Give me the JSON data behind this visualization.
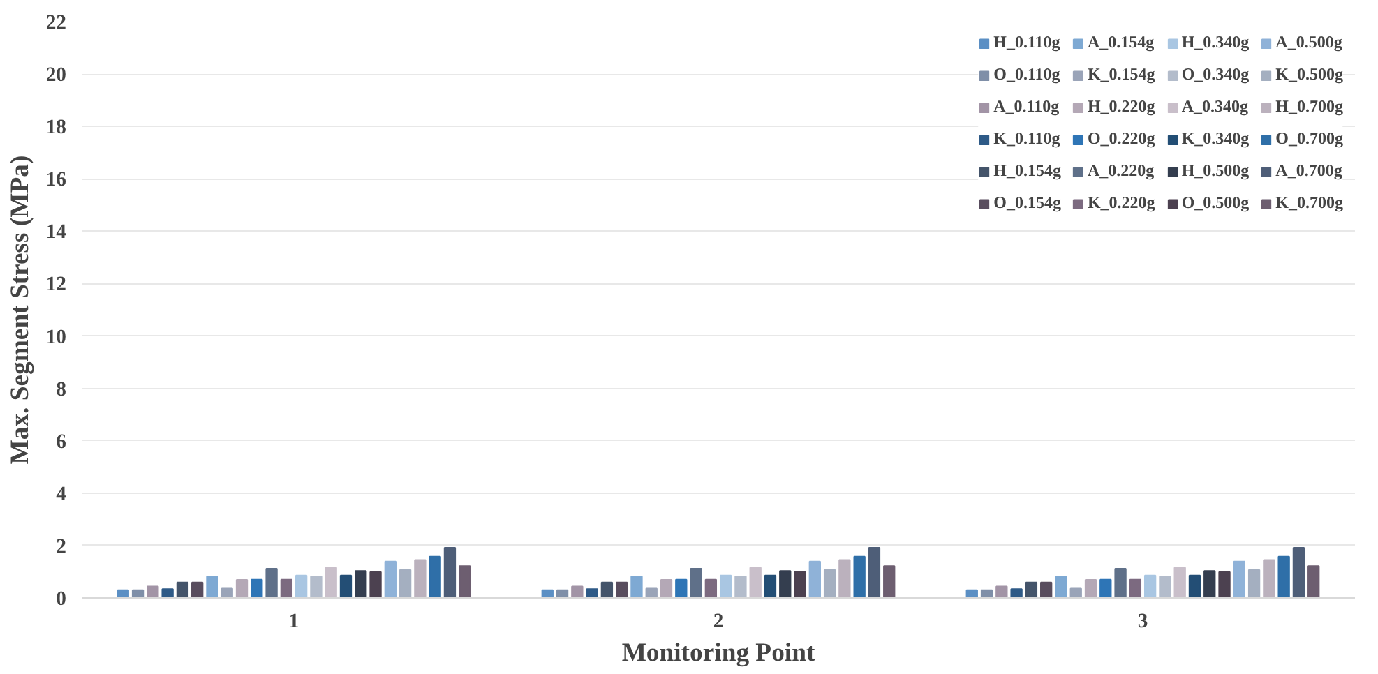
{
  "chart_data": {
    "type": "bar",
    "xlabel": "Monitoring Point",
    "ylabel": "Max. Segment Stress (MPa)",
    "categories": [
      "1",
      "2",
      "3"
    ],
    "ylim": [
      0,
      22
    ],
    "yticks": [
      0,
      2,
      4,
      6,
      8,
      10,
      12,
      14,
      16,
      18,
      20,
      22
    ],
    "grid": "y",
    "legend": "top right",
    "series": [
      {
        "name": "H_0.110g",
        "color": "#5b8fc4",
        "values": [
          0.3,
          0.3,
          0.3
        ]
      },
      {
        "name": "O_0.110g",
        "color": "#7f8fa8",
        "values": [
          0.3,
          0.3,
          0.3
        ]
      },
      {
        "name": "A_0.110g",
        "color": "#a294a6",
        "values": [
          0.44,
          0.44,
          0.44
        ]
      },
      {
        "name": "K_0.110g",
        "color": "#2e5a87",
        "values": [
          0.34,
          0.34,
          0.34
        ]
      },
      {
        "name": "H_0.154g",
        "color": "#44546a",
        "values": [
          0.59,
          0.59,
          0.59
        ]
      },
      {
        "name": "O_0.154g",
        "color": "#594d5e",
        "values": [
          0.59,
          0.59,
          0.59
        ]
      },
      {
        "name": "A_0.154g",
        "color": "#7ea9d3",
        "values": [
          0.82,
          0.82,
          0.82
        ]
      },
      {
        "name": "K_0.154g",
        "color": "#9aa4b8",
        "values": [
          0.36,
          0.36,
          0.36
        ]
      },
      {
        "name": "H_0.220g",
        "color": "#b4a8b6",
        "values": [
          0.69,
          0.69,
          0.69
        ]
      },
      {
        "name": "O_0.220g",
        "color": "#2e75b6",
        "values": [
          0.7,
          0.7,
          0.7
        ]
      },
      {
        "name": "A_0.220g",
        "color": "#5f7089",
        "values": [
          1.12,
          1.12,
          1.12
        ]
      },
      {
        "name": "K_0.220g",
        "color": "#7c6a80",
        "values": [
          0.7,
          0.7,
          0.7
        ]
      },
      {
        "name": "H_0.340g",
        "color": "#a9c6e2",
        "values": [
          0.86,
          0.86,
          0.86
        ]
      },
      {
        "name": "O_0.340g",
        "color": "#b3bccb",
        "values": [
          0.82,
          0.82,
          0.82
        ]
      },
      {
        "name": "A_0.340g",
        "color": "#c9bfca",
        "values": [
          1.16,
          1.16,
          1.16
        ]
      },
      {
        "name": "K_0.340g",
        "color": "#234e75",
        "values": [
          0.86,
          0.86,
          0.86
        ]
      },
      {
        "name": "H_0.500g",
        "color": "#343e4f",
        "values": [
          1.03,
          1.03,
          1.03
        ]
      },
      {
        "name": "O_0.500g",
        "color": "#4c4150",
        "values": [
          0.99,
          0.99,
          0.99
        ]
      },
      {
        "name": "A_0.500g",
        "color": "#8fb2d8",
        "values": [
          1.39,
          1.39,
          1.39
        ]
      },
      {
        "name": "K_0.500g",
        "color": "#a4afc0",
        "values": [
          1.07,
          1.07,
          1.07
        ]
      },
      {
        "name": "H_0.700g",
        "color": "#bbb1bd",
        "values": [
          1.45,
          1.45,
          1.45
        ]
      },
      {
        "name": "O_0.700g",
        "color": "#2f6fa8",
        "values": [
          1.58,
          1.58,
          1.58
        ]
      },
      {
        "name": "A_0.700g",
        "color": "#4e5e78",
        "values": [
          1.92,
          1.92,
          1.92
        ]
      },
      {
        "name": "K_0.700g",
        "color": "#6d5e70",
        "values": [
          1.22,
          1.22,
          1.22
        ]
      }
    ]
  }
}
